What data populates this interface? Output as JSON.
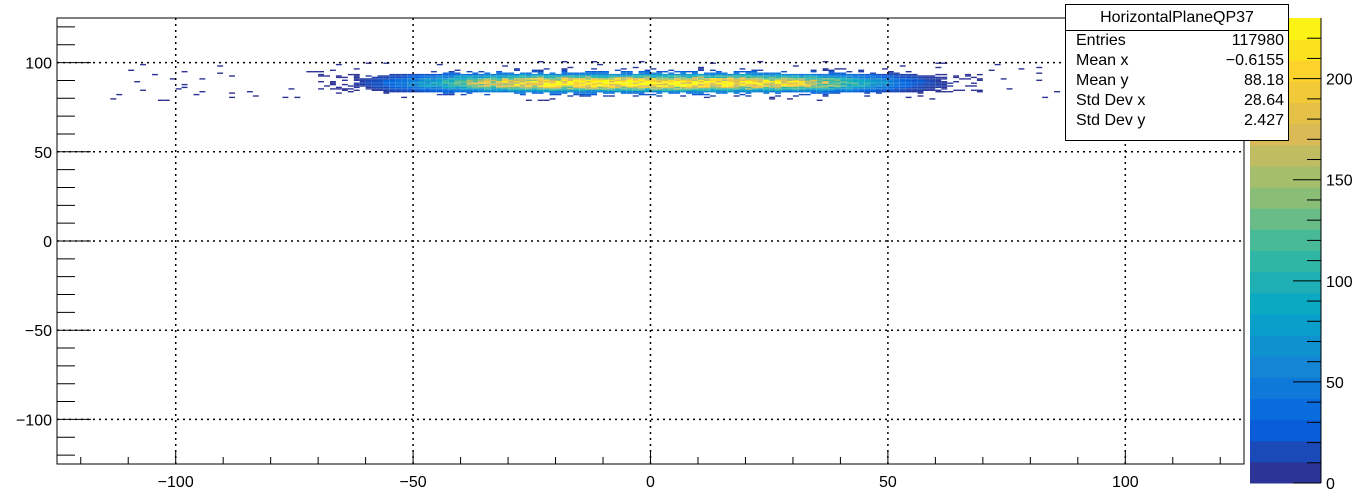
{
  "chart_data": {
    "type": "heatmap",
    "title": "",
    "xlabel": "",
    "ylabel": "",
    "xlim": [
      -125,
      125
    ],
    "ylim": [
      -125,
      125
    ],
    "x_ticks": [
      -100,
      -50,
      0,
      50,
      100
    ],
    "y_ticks": [
      -100,
      -50,
      0,
      50,
      100
    ],
    "x_tick_labels": [
      "−100",
      "−50",
      "0",
      "50",
      "100"
    ],
    "y_tick_labels": [
      "−100",
      "−50",
      "0",
      "50",
      "100"
    ],
    "grid": true,
    "z_range": [
      0,
      230
    ],
    "z_ticks": [
      0,
      50,
      100,
      150,
      200
    ],
    "z_tick_labels": [
      "0",
      "50",
      "100",
      "150",
      "200"
    ],
    "distribution": {
      "mean_x": -0.6155,
      "mean_y": 88.18,
      "std_x": 28.64,
      "std_y": 2.427,
      "x_extent": [
        -115,
        115
      ],
      "peak_count": 230
    },
    "stats": {
      "name": "HorizontalPlaneQP37",
      "rows": [
        {
          "label": "Entries",
          "value": "117980"
        },
        {
          "label": "Mean x",
          "value": "−0.6155"
        },
        {
          "label": "Mean y",
          "value": "88.18"
        },
        {
          "label": "Std Dev x",
          "value": "28.64"
        },
        {
          "label": "Std Dev y",
          "value": "2.427"
        }
      ]
    },
    "palette": [
      "#352a87",
      "#0363e1",
      "#1485d4",
      "#06a7c6",
      "#38b99e",
      "#92bf73",
      "#d9ba56",
      "#fcce2e",
      "#f9fb0e"
    ]
  }
}
